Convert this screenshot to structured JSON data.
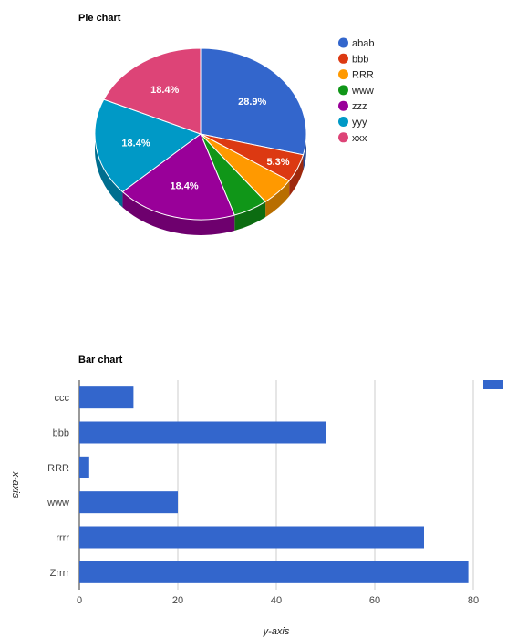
{
  "chart_data": [
    {
      "type": "pie",
      "title": "Pie chart",
      "is3D": true,
      "legend_position": "right",
      "slices": [
        {
          "label": "abab",
          "value": 28.9,
          "color": "#3366cc",
          "text": "28.9%"
        },
        {
          "label": "bbb",
          "value": 5.3,
          "color": "#dc3912",
          "text": "5.3%"
        },
        {
          "label": "RRR",
          "value": 5.3,
          "color": "#ff9900",
          "text": ""
        },
        {
          "label": "www",
          "value": 5.3,
          "color": "#109618",
          "text": ""
        },
        {
          "label": "zzz",
          "value": 18.4,
          "color": "#990099",
          "text": "18.4%"
        },
        {
          "label": "yyy",
          "value": 18.4,
          "color": "#0099c6",
          "text": "18.4%"
        },
        {
          "label": "xxx",
          "value": 18.4,
          "color": "#dd4477",
          "text": "18.4%"
        }
      ]
    },
    {
      "type": "bar",
      "orientation": "horizontal",
      "title": "Bar chart",
      "xlabel": "y-axis",
      "ylabel": "x-axis",
      "categories": [
        "ccc",
        "bbb",
        "RRR",
        "www",
        "rrrr",
        "Zrrrr"
      ],
      "values": [
        11,
        50,
        2,
        20,
        70,
        79
      ],
      "xlim": [
        0,
        80
      ],
      "ticks": [
        0,
        20,
        40,
        60,
        80
      ],
      "grid": true,
      "color": "#3366cc",
      "legend_position": "top-right"
    }
  ]
}
